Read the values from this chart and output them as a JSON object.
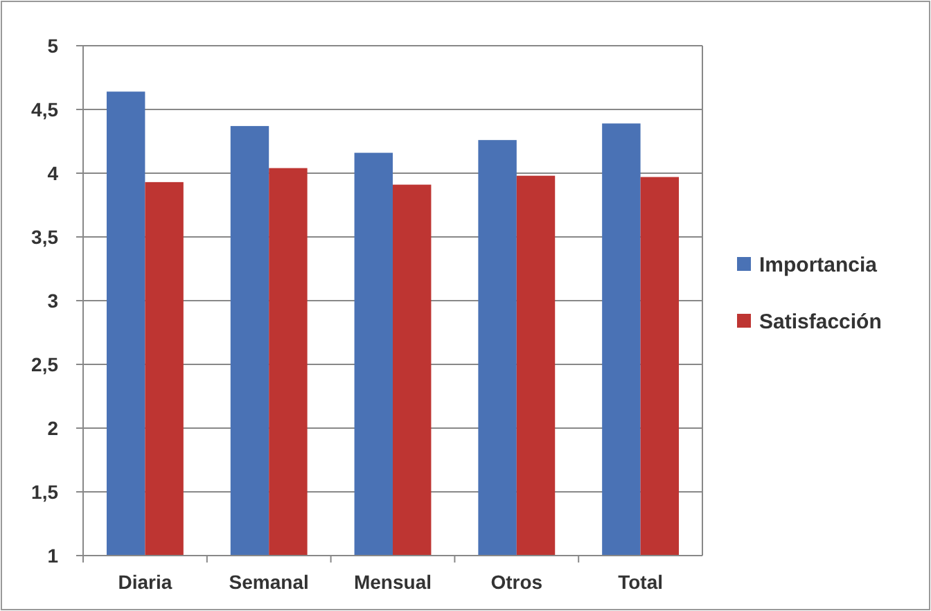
{
  "chart_data": {
    "type": "bar",
    "categories": [
      "Diaria",
      "Semanal",
      "Mensual",
      "Otros",
      "Total"
    ],
    "series": [
      {
        "name": "Importancia",
        "color": "#4a72b5",
        "values": [
          4.64,
          4.37,
          4.16,
          4.26,
          4.39
        ]
      },
      {
        "name": "Satisfacción",
        "color": "#be3532",
        "values": [
          3.93,
          4.04,
          3.91,
          3.98,
          3.97
        ]
      }
    ],
    "ylim": [
      1,
      5
    ],
    "yticks": [
      1,
      {
        "value": 1.5,
        "label": "1,5"
      },
      2,
      {
        "value": 2.5,
        "label": "2,5"
      },
      3,
      {
        "value": 3.5,
        "label": "3,5"
      },
      4,
      {
        "value": 4.5,
        "label": "4,5"
      },
      5
    ],
    "grid": "y",
    "legend": "right"
  }
}
